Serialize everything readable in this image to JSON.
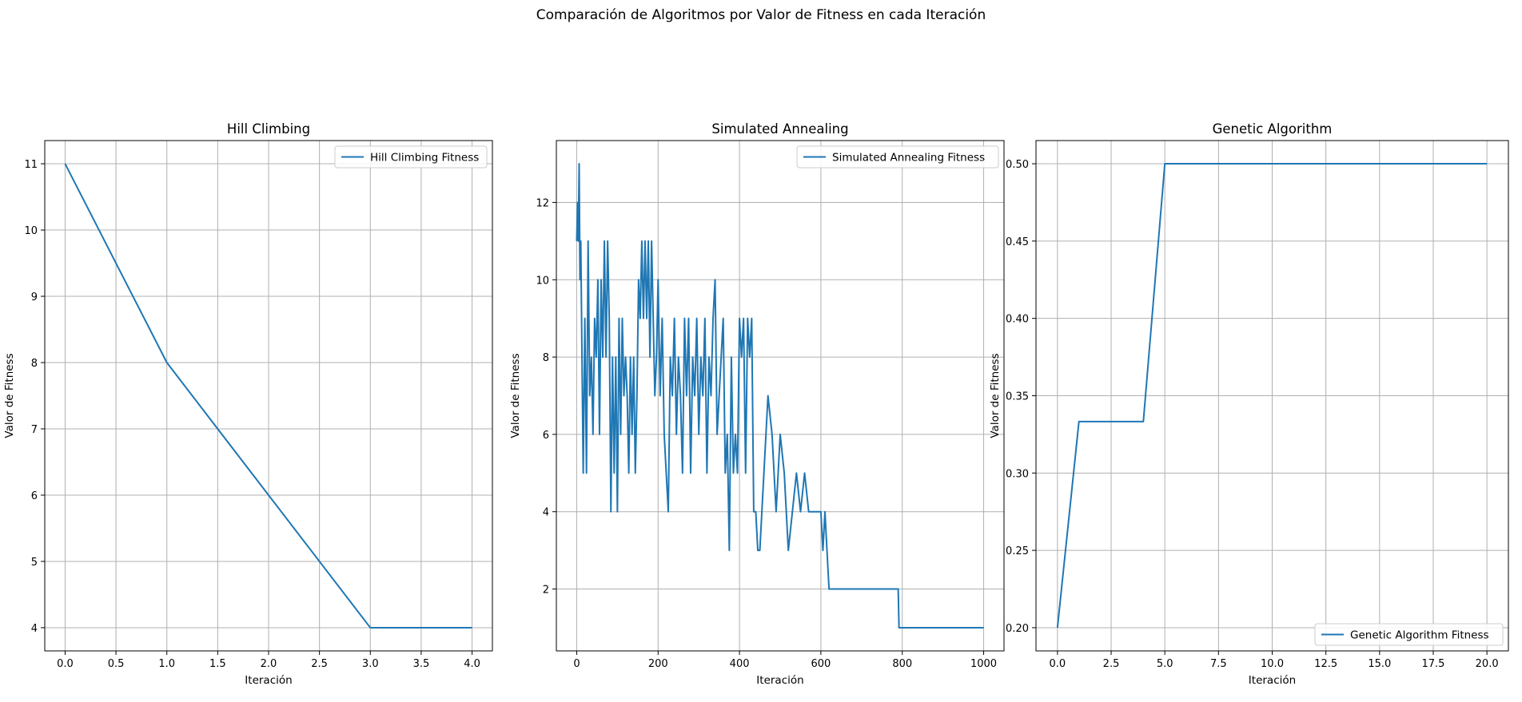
{
  "figure": {
    "suptitle": "Comparación de Algoritmos por Valor de Fitness en cada Iteración",
    "line_color": "#1f77b4",
    "grid_color": "#b0b0b0"
  },
  "chart_data": [
    {
      "type": "line",
      "title": "Hill Climbing",
      "xlabel": "Iteración",
      "ylabel": "Valor de Fitness",
      "xlim": [
        -0.2,
        4.2
      ],
      "ylim": [
        3.65,
        11.35
      ],
      "xticks": [
        0.0,
        0.5,
        1.0,
        1.5,
        2.0,
        2.5,
        3.0,
        3.5,
        4.0
      ],
      "xtick_labels": [
        "0.0",
        "0.5",
        "1.0",
        "1.5",
        "2.0",
        "2.5",
        "3.0",
        "3.5",
        "4.0"
      ],
      "yticks": [
        4,
        5,
        6,
        7,
        8,
        9,
        10,
        11
      ],
      "ytick_labels": [
        "4",
        "5",
        "6",
        "7",
        "8",
        "9",
        "10",
        "11"
      ],
      "grid": true,
      "legend_position": "top-right",
      "series": [
        {
          "name": "Hill Climbing Fitness",
          "x": [
            0,
            1,
            2,
            3,
            4
          ],
          "y": [
            11,
            8,
            6,
            4,
            4
          ]
        }
      ]
    },
    {
      "type": "line",
      "title": "Simulated Annealing",
      "xlabel": "Iteración",
      "ylabel": "Valor de Fitness",
      "xlim": [
        -50,
        1050
      ],
      "ylim": [
        0.4,
        13.6
      ],
      "xticks": [
        0,
        200,
        400,
        600,
        800,
        1000
      ],
      "xtick_labels": [
        "0",
        "200",
        "400",
        "600",
        "800",
        "1000"
      ],
      "yticks": [
        2,
        4,
        6,
        8,
        10,
        12
      ],
      "ytick_labels": [
        "2",
        "4",
        "6",
        "8",
        "10",
        "12"
      ],
      "grid": true,
      "legend_position": "top-right",
      "series": [
        {
          "name": "Simulated Annealing Fitness",
          "x": [
            0,
            2,
            4,
            6,
            8,
            10,
            13,
            16,
            20,
            24,
            28,
            32,
            36,
            40,
            44,
            48,
            52,
            56,
            60,
            64,
            68,
            72,
            76,
            80,
            84,
            88,
            92,
            96,
            100,
            104,
            108,
            112,
            116,
            120,
            124,
            128,
            132,
            136,
            140,
            144,
            148,
            152,
            156,
            160,
            164,
            168,
            172,
            176,
            180,
            184,
            188,
            192,
            196,
            200,
            205,
            210,
            215,
            220,
            225,
            230,
            235,
            240,
            245,
            250,
            255,
            260,
            265,
            270,
            275,
            280,
            285,
            290,
            295,
            300,
            305,
            310,
            315,
            320,
            325,
            330,
            335,
            340,
            345,
            350,
            355,
            360,
            365,
            370,
            375,
            380,
            385,
            390,
            395,
            400,
            405,
            410,
            415,
            420,
            425,
            430,
            435,
            440,
            445,
            450,
            460,
            470,
            480,
            490,
            500,
            510,
            520,
            530,
            540,
            550,
            560,
            570,
            580,
            590,
            600,
            605,
            610,
            615,
            620,
            650,
            700,
            750,
            790,
            792,
            800,
            850,
            900,
            950,
            1000
          ],
          "y": [
            11,
            12,
            11,
            13,
            10,
            11,
            8,
            5,
            9,
            5,
            11,
            7,
            8,
            6,
            9,
            8,
            10,
            6,
            10,
            8,
            11,
            8,
            11,
            9,
            4,
            8,
            5,
            8,
            4,
            9,
            6,
            9,
            7,
            8,
            7,
            5,
            8,
            6,
            8,
            5,
            7,
            10,
            9,
            11,
            9,
            11,
            9,
            11,
            8,
            11,
            9,
            7,
            8,
            10,
            7,
            9,
            6,
            5,
            4,
            8,
            7,
            9,
            6,
            8,
            7,
            5,
            9,
            7,
            9,
            5,
            8,
            7,
            9,
            6,
            8,
            7,
            9,
            5,
            8,
            7,
            9,
            10,
            6,
            7,
            8,
            9,
            5,
            6,
            3,
            8,
            5,
            6,
            5,
            9,
            8,
            9,
            5,
            9,
            8,
            9,
            4,
            4,
            3,
            3,
            5,
            7,
            6,
            4,
            6,
            5,
            3,
            4,
            5,
            4,
            5,
            4,
            4,
            4,
            4,
            3,
            4,
            3,
            2,
            2,
            2,
            2,
            2,
            1,
            1,
            1,
            1,
            1,
            1
          ]
        }
      ]
    },
    {
      "type": "line",
      "title": "Genetic Algorithm",
      "xlabel": "Iteración",
      "ylabel": "Valor de Fitness",
      "xlim": [
        -1.0,
        21.0
      ],
      "ylim": [
        0.185,
        0.515
      ],
      "xticks": [
        0.0,
        2.5,
        5.0,
        7.5,
        10.0,
        12.5,
        15.0,
        17.5,
        20.0
      ],
      "xtick_labels": [
        "0.0",
        "2.5",
        "5.0",
        "7.5",
        "10.0",
        "12.5",
        "15.0",
        "17.5",
        "20.0"
      ],
      "yticks": [
        0.2,
        0.25,
        0.3,
        0.35,
        0.4,
        0.45,
        0.5
      ],
      "ytick_labels": [
        "0.20",
        "0.25",
        "0.30",
        "0.35",
        "0.40",
        "0.45",
        "0.50"
      ],
      "grid": true,
      "legend_position": "bottom-right",
      "series": [
        {
          "name": "Genetic Algorithm Fitness",
          "x": [
            0,
            1,
            2,
            3,
            4,
            5,
            6,
            7,
            8,
            9,
            10,
            11,
            12,
            13,
            14,
            15,
            16,
            17,
            18,
            19,
            20
          ],
          "y": [
            0.2,
            0.3333,
            0.3333,
            0.3333,
            0.3333,
            0.5,
            0.5,
            0.5,
            0.5,
            0.5,
            0.5,
            0.5,
            0.5,
            0.5,
            0.5,
            0.5,
            0.5,
            0.5,
            0.5,
            0.5,
            0.5
          ]
        }
      ]
    }
  ]
}
